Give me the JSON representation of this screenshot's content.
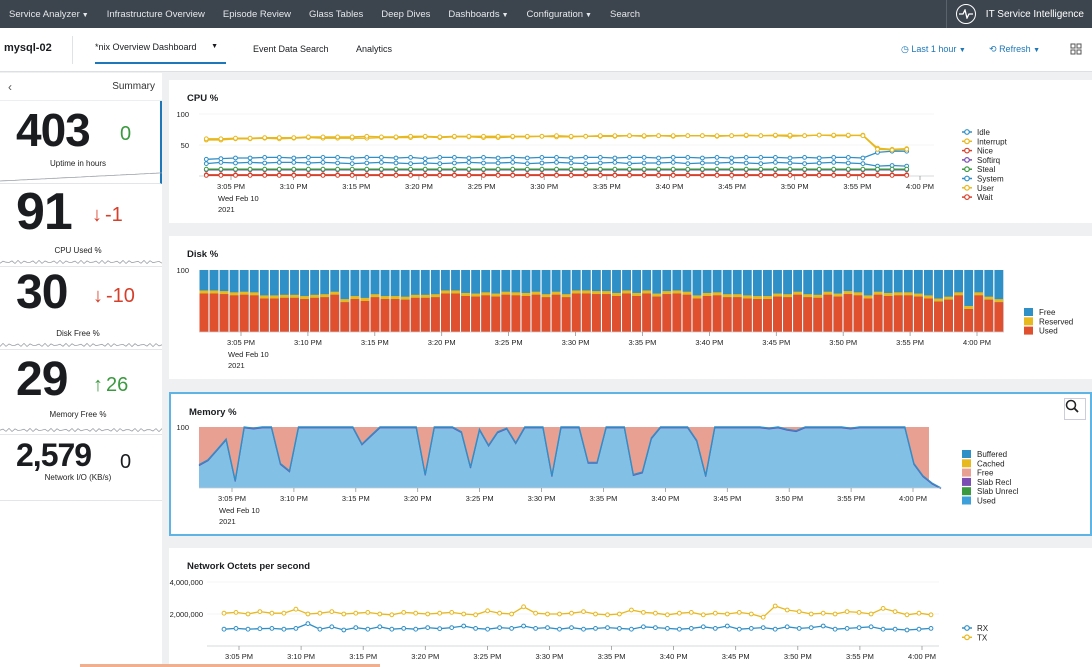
{
  "topnav": {
    "items": [
      {
        "label": "Service Analyzer",
        "caret": true
      },
      {
        "label": "Infrastructure Overview",
        "caret": false
      },
      {
        "label": "Episode Review",
        "caret": false
      },
      {
        "label": "Glass Tables",
        "caret": false
      },
      {
        "label": "Deep Dives",
        "caret": false
      },
      {
        "label": "Dashboards",
        "caret": true
      },
      {
        "label": "Configuration",
        "caret": true
      },
      {
        "label": "Search",
        "caret": false
      }
    ],
    "brand": "IT Service Intelligence"
  },
  "subbar": {
    "entity": "mysql-02",
    "dashboard": "*nix Overview Dashboard",
    "tabs": [
      "Event Data Search",
      "Analytics"
    ],
    "time_range": "Last 1 hour",
    "refresh": "Refresh"
  },
  "sidebar": {
    "title": "Summary",
    "kpis": [
      {
        "value": "403",
        "delta": "0",
        "direction": "none",
        "label": "Uptime in hours"
      },
      {
        "value": "91",
        "delta": "-1",
        "direction": "down",
        "label": "CPU Used %"
      },
      {
        "value": "30",
        "delta": "-10",
        "direction": "down",
        "label": "Disk Free %"
      },
      {
        "value": "29",
        "delta": "26",
        "direction": "up",
        "label": "Memory Free %"
      },
      {
        "value": "2,579",
        "delta": "0",
        "direction": "none",
        "label": "Network I/O (KB/s)"
      }
    ],
    "colors": {
      "down": "#d6402b",
      "up": "#3a9a3f",
      "neutral": "#1a1c20"
    }
  },
  "time_ticks": [
    "3:05 PM",
    "3:10 PM",
    "3:15 PM",
    "3:20 PM",
    "3:25 PM",
    "3:30 PM",
    "3:35 PM",
    "3:40 PM",
    "3:45 PM",
    "3:50 PM",
    "3:55 PM",
    "4:00 PM"
  ],
  "date_label": [
    "Wed Feb 10",
    "2021"
  ],
  "chart_data": [
    {
      "type": "line",
      "title": "CPU %",
      "y_ticks": [
        "100",
        "50"
      ],
      "ylim": [
        0,
        100
      ],
      "legend": "right",
      "series": [
        {
          "name": "Idle",
          "color": "#2f8fc7",
          "values": [
            20,
            22,
            21,
            22,
            21,
            22,
            22,
            21,
            22,
            21,
            20,
            21,
            22,
            21,
            20,
            21,
            20,
            21,
            22,
            21,
            21,
            22,
            20,
            21,
            22,
            21,
            20,
            21,
            22,
            20,
            21,
            21,
            22,
            20,
            21,
            21,
            22,
            21,
            20,
            22,
            21,
            20,
            21,
            22,
            21,
            20,
            16,
            17,
            16
          ]
        },
        {
          "name": "Interrupt",
          "color": "#e8b81f",
          "values": [
            58,
            58,
            60,
            60,
            61,
            60,
            61,
            62,
            61,
            61,
            61,
            61,
            62,
            62,
            62,
            63,
            62,
            63,
            63,
            62,
            62,
            63,
            63,
            64,
            63,
            63,
            64,
            64,
            64,
            65,
            64,
            65,
            64,
            65,
            65,
            64,
            65,
            65,
            65,
            65,
            64,
            65,
            66,
            65,
            65,
            66,
            45,
            43,
            44
          ]
        },
        {
          "name": "Nice",
          "color": "#d6402b",
          "values": [
            2,
            2,
            2,
            2,
            2,
            2,
            2,
            2,
            2,
            2,
            2,
            2,
            2,
            2,
            2,
            2,
            2,
            2,
            2,
            2,
            2,
            2,
            2,
            2,
            2,
            2,
            2,
            2,
            2,
            2,
            2,
            2,
            2,
            2,
            2,
            2,
            2,
            2,
            2,
            2,
            2,
            2,
            2,
            2,
            2,
            2,
            2,
            2,
            2
          ]
        },
        {
          "name": "Softirq",
          "color": "#7a4eb3",
          "values": [
            10,
            10,
            10,
            10,
            10,
            10,
            10,
            10,
            10,
            10,
            10,
            10,
            10,
            10,
            10,
            10,
            10,
            10,
            10,
            10,
            10,
            10,
            10,
            10,
            10,
            10,
            10,
            10,
            10,
            10,
            10,
            10,
            10,
            10,
            10,
            10,
            10,
            10,
            10,
            10,
            10,
            10,
            10,
            10,
            10,
            10,
            10,
            10,
            10
          ]
        },
        {
          "name": "Steal",
          "color": "#3a9a3f",
          "values": [
            11,
            11,
            11,
            11,
            11,
            11,
            11,
            11,
            11,
            11,
            11,
            11,
            11,
            11,
            11,
            11,
            11,
            11,
            11,
            11,
            11,
            11,
            11,
            11,
            11,
            11,
            11,
            11,
            11,
            11,
            11,
            11,
            11,
            11,
            11,
            11,
            11,
            11,
            11,
            11,
            11,
            11,
            11,
            11,
            11,
            11,
            11,
            11,
            11
          ]
        },
        {
          "name": "System",
          "color": "#2f8fc7",
          "values": [
            27,
            28,
            29,
            29,
            30,
            30,
            29,
            30,
            30,
            30,
            29,
            30,
            30,
            29,
            30,
            28,
            30,
            30,
            29,
            30,
            29,
            30,
            29,
            30,
            30,
            29,
            30,
            30,
            29,
            30,
            30,
            29,
            30,
            30,
            29,
            30,
            29,
            30,
            30,
            30,
            29,
            30,
            29,
            30,
            30,
            29,
            38,
            40,
            40
          ]
        },
        {
          "name": "User",
          "color": "#e8b81f",
          "values": [
            60,
            60,
            61,
            61,
            62,
            62,
            62,
            63,
            63,
            63,
            63,
            64,
            63,
            63,
            64,
            64,
            63,
            64,
            64,
            64,
            64,
            64,
            64,
            64,
            65,
            64,
            64,
            65,
            65,
            65,
            65,
            65,
            65,
            65,
            65,
            65,
            65,
            66,
            65,
            66,
            66,
            65,
            66,
            66,
            66,
            65,
            43,
            42,
            43
          ]
        },
        {
          "name": "Wait",
          "color": "#d6402b",
          "values": [
            1,
            1,
            1,
            1,
            1,
            1,
            1,
            1,
            1,
            1,
            1,
            1,
            1,
            1,
            1,
            1,
            1,
            1,
            1,
            1,
            1,
            1,
            1,
            1,
            1,
            1,
            1,
            1,
            1,
            1,
            1,
            1,
            1,
            1,
            1,
            1,
            1,
            1,
            1,
            1,
            1,
            1,
            1,
            1,
            1,
            1,
            1,
            1,
            1
          ]
        }
      ]
    },
    {
      "type": "bar",
      "stacked": true,
      "title": "Disk %",
      "y_ticks": [
        "100"
      ],
      "ylim": [
        0,
        100
      ],
      "legend": "right",
      "series": [
        {
          "name": "Free",
          "color": "#2f8fc7"
        },
        {
          "name": "Reserved",
          "color": "#e8b81f"
        },
        {
          "name": "Used",
          "color": "#e0502f",
          "values": [
            62,
            62,
            61,
            59,
            60,
            59,
            54,
            54,
            55,
            55,
            53,
            55,
            56,
            60,
            48,
            53,
            50,
            56,
            53,
            53,
            52,
            55,
            55,
            56,
            62,
            62,
            58,
            57,
            59,
            57,
            60,
            59,
            58,
            60,
            56,
            60,
            56,
            62,
            62,
            61,
            61,
            58,
            62,
            58,
            62,
            57,
            61,
            62,
            60,
            54,
            58,
            59,
            56,
            56,
            54,
            53,
            53,
            57,
            56,
            60,
            56,
            55,
            60,
            57,
            61,
            59,
            54,
            60,
            58,
            59,
            59,
            57,
            54,
            49,
            52,
            59,
            37,
            59,
            52,
            48
          ]
        }
      ],
      "reserved_values": [
        5,
        5,
        5,
        5,
        5,
        5,
        5,
        5,
        5,
        5,
        5,
        5,
        5,
        5,
        5,
        5,
        5,
        5,
        5,
        5,
        5,
        5,
        5,
        5,
        5,
        5,
        5,
        5,
        5,
        5,
        5,
        5,
        5,
        5,
        5,
        5,
        5,
        5,
        5,
        5,
        5,
        5,
        5,
        5,
        5,
        5,
        5,
        5,
        5,
        5,
        5,
        5,
        5,
        5,
        5,
        5,
        5,
        5,
        5,
        5,
        5,
        5,
        5,
        5,
        5,
        5,
        5,
        5,
        5,
        5,
        5,
        5,
        5,
        5,
        5,
        5,
        5,
        5,
        5,
        5
      ]
    },
    {
      "type": "area",
      "title": "Memory %",
      "y_ticks": [
        "100"
      ],
      "ylim": [
        0,
        100
      ],
      "legend": "right",
      "series": [
        {
          "name": "Buffered",
          "color": "#2f8fc7"
        },
        {
          "name": "Cached",
          "color": "#e8b81f"
        },
        {
          "name": "Free",
          "color": "#e8a092"
        },
        {
          "name": "Slab Recl",
          "color": "#7a4eb3"
        },
        {
          "name": "Slab Unrecl",
          "color": "#3a9a3f"
        },
        {
          "name": "Used",
          "color": "#3ea0da",
          "values": [
            38,
            46,
            63,
            80,
            12,
            100,
            98,
            100,
            100,
            40,
            28,
            100,
            100,
            100,
            100,
            100,
            100,
            100,
            72,
            86,
            100,
            100,
            100,
            100,
            100,
            22,
            100,
            100,
            100,
            92,
            34,
            96,
            70,
            92,
            98,
            74,
            100,
            100,
            100,
            20,
            100,
            100,
            100,
            42,
            42,
            100,
            100,
            100,
            22,
            26,
            82,
            100,
            100,
            100,
            100,
            78,
            20,
            100,
            100,
            100,
            100,
            100,
            100,
            98,
            100,
            96,
            94,
            100,
            100,
            100,
            100,
            100,
            98,
            100,
            100,
            100,
            100,
            100,
            100,
            40,
            20,
            8,
            0
          ]
        }
      ]
    },
    {
      "type": "line",
      "title": "Network Octets per second",
      "y_ticks": [
        "4,000,000",
        "2,000,000"
      ],
      "ylim": [
        0,
        4000000
      ],
      "legend": "right",
      "series": [
        {
          "name": "RX",
          "color": "#2f8fc7",
          "values": [
            1050000,
            1100000,
            1050000,
            1080000,
            1100000,
            1050000,
            1100000,
            1400000,
            1050000,
            1200000,
            1000000,
            1150000,
            1050000,
            1200000,
            1050000,
            1100000,
            1050000,
            1150000,
            1080000,
            1150000,
            1250000,
            1100000,
            1050000,
            1150000,
            1100000,
            1250000,
            1100000,
            1150000,
            1050000,
            1150000,
            1050000,
            1100000,
            1150000,
            1100000,
            1050000,
            1200000,
            1150000,
            1100000,
            1050000,
            1100000,
            1200000,
            1100000,
            1250000,
            1050000,
            1100000,
            1150000,
            1050000,
            1200000,
            1100000,
            1150000,
            1250000,
            1050000,
            1100000,
            1150000,
            1200000,
            1050000,
            1050000,
            1000000,
            1050000,
            1100000
          ]
        },
        {
          "name": "TX",
          "color": "#e8b81f",
          "values": [
            2050000,
            2100000,
            2000000,
            2150000,
            2050000,
            2050000,
            2300000,
            2000000,
            2050000,
            2150000,
            2000000,
            2050000,
            2100000,
            2000000,
            1950000,
            2100000,
            2050000,
            2000000,
            2050000,
            2100000,
            2000000,
            1950000,
            2200000,
            2050000,
            2000000,
            2450000,
            2050000,
            2000000,
            2000000,
            2050000,
            2150000,
            2000000,
            1950000,
            2000000,
            2250000,
            2100000,
            2050000,
            1950000,
            2050000,
            2100000,
            1950000,
            2050000,
            2000000,
            2100000,
            2000000,
            1800000,
            2500000,
            2250000,
            2150000,
            2000000,
            2050000,
            2000000,
            2150000,
            2100000,
            2000000,
            2350000,
            2150000,
            1950000,
            2050000,
            1950000
          ]
        }
      ]
    }
  ]
}
